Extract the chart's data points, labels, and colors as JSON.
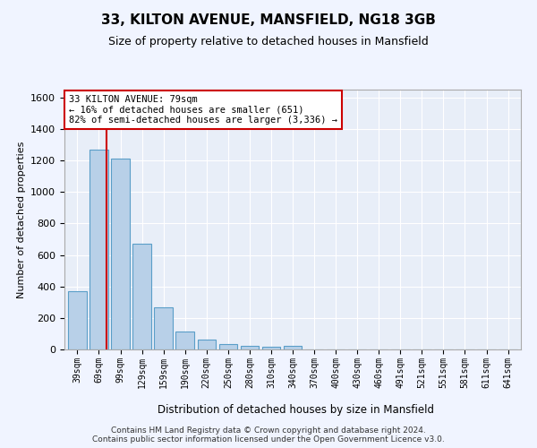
{
  "title1": "33, KILTON AVENUE, MANSFIELD, NG18 3GB",
  "title2": "Size of property relative to detached houses in Mansfield",
  "xlabel": "Distribution of detached houses by size in Mansfield",
  "ylabel": "Number of detached properties",
  "footer": "Contains HM Land Registry data © Crown copyright and database right 2024.\nContains public sector information licensed under the Open Government Licence v3.0.",
  "bar_labels": [
    "39sqm",
    "69sqm",
    "99sqm",
    "129sqm",
    "159sqm",
    "190sqm",
    "220sqm",
    "250sqm",
    "280sqm",
    "310sqm",
    "340sqm",
    "370sqm",
    "400sqm",
    "430sqm",
    "460sqm",
    "491sqm",
    "521sqm",
    "551sqm",
    "581sqm",
    "611sqm",
    "641sqm"
  ],
  "bar_values_clean": [
    370,
    1270,
    1210,
    670,
    265,
    115,
    65,
    35,
    20,
    15,
    25,
    0,
    0,
    0,
    0,
    0,
    0,
    0,
    0,
    0,
    0
  ],
  "bar_color": "#b8d0e8",
  "bar_edge_color": "#5a9ec8",
  "property_line_color": "#cc0000",
  "annotation_text": "33 KILTON AVENUE: 79sqm\n← 16% of detached houses are smaller (651)\n82% of semi-detached houses are larger (3,336) →",
  "ylim": [
    0,
    1650
  ],
  "yticks": [
    0,
    200,
    400,
    600,
    800,
    1000,
    1200,
    1400,
    1600
  ],
  "bg_color": "#e8eef8",
  "grid_color": "#ffffff",
  "annotation_border_color": "#cc0000",
  "title1_fontsize": 11,
  "title2_fontsize": 9
}
